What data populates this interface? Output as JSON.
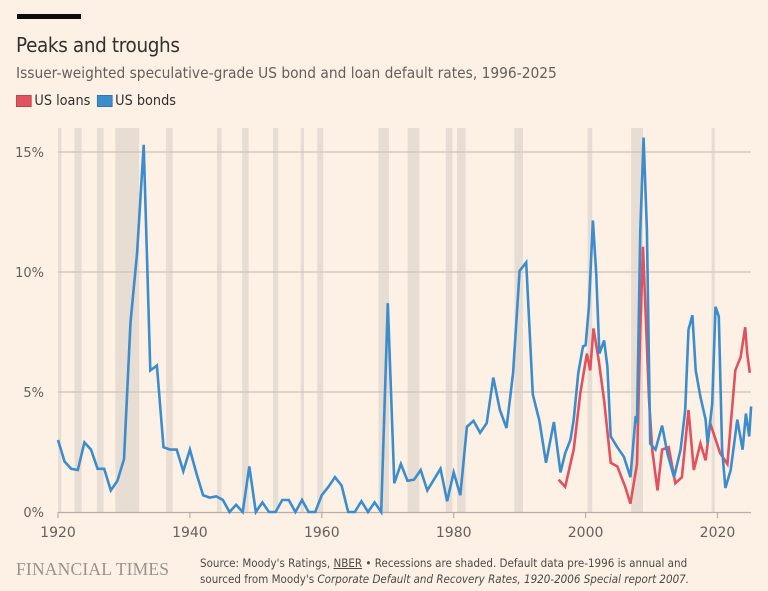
{
  "header": {
    "title": "Peaks and troughs",
    "subtitle": "Issuer-weighted speculative-grade US bond and loan default rates, 1996-2025"
  },
  "legend": [
    {
      "label": "US loans",
      "color": "#e0525e"
    },
    {
      "label": "US bonds",
      "color": "#3d8ccc"
    }
  ],
  "footer": {
    "logo": "FINANCIAL TIMES",
    "source_prefix": "Source: Moody's Ratings, ",
    "source_link": "NBER",
    "source_mid": " • Recessions are shaded. Default data pre-1996 is annual and",
    "source_line2_prefix": "sourced from Moody's ",
    "source_line2_italic": "Corporate Default and Recovery Rates, 1920-2006 Special report 2007."
  },
  "chart_data": {
    "type": "line",
    "title": "Peaks and troughs",
    "subtitle": "Issuer-weighted speculative-grade US bond and loan default rates, 1996-2025",
    "xlabel": "",
    "ylabel": "",
    "xlim": [
      1920,
      2025.2
    ],
    "ylim": [
      0,
      16
    ],
    "x_ticks": [
      1920,
      1940,
      1960,
      1980,
      2000,
      2020
    ],
    "x_tick_labels": [
      "1920",
      "1940",
      "1960",
      "1980",
      "2000",
      "2020"
    ],
    "y_ticks": [
      0,
      5,
      10,
      15
    ],
    "y_tick_labels": [
      "0%",
      "5%",
      "10%",
      "15%"
    ],
    "grid": "horizontal",
    "legend_position": "top-left",
    "recessions": [
      [
        1920.0,
        1920.5
      ],
      [
        1922.5,
        1923.6
      ],
      [
        1925.9,
        1926.9
      ],
      [
        1928.7,
        1932.3
      ],
      [
        1936.4,
        1937.4
      ],
      [
        1944.1,
        1944.8
      ],
      [
        1947.9,
        1948.9
      ],
      [
        1952.6,
        1953.4
      ],
      [
        1956.8,
        1957.3
      ],
      [
        1959.3,
        1960.2
      ],
      [
        1968.6,
        1970.2
      ],
      [
        1973.0,
        1974.8
      ],
      [
        1978.8,
        1979.8
      ],
      [
        1980.5,
        1981.8
      ],
      [
        1989.2,
        1990.5
      ],
      [
        2000.3,
        2001.0
      ],
      [
        2006.9,
        2008.7
      ],
      [
        2019.1,
        2019.6
      ]
    ],
    "series": [
      {
        "name": "US bonds",
        "color": "#3d8ccc",
        "x": [
          1920,
          1921,
          1922,
          1923,
          1924,
          1925,
          1926,
          1927,
          1928,
          1929,
          1930,
          1931,
          1932,
          1933,
          1934,
          1935,
          1936,
          1937,
          1938,
          1939,
          1940,
          1941,
          1942,
          1943,
          1944,
          1945,
          1946,
          1947,
          1948,
          1949,
          1950,
          1951,
          1952,
          1953,
          1954,
          1955,
          1956,
          1957,
          1958,
          1959,
          1960,
          1961,
          1962,
          1963,
          1964,
          1965,
          1966,
          1967,
          1968,
          1969,
          1970,
          1971,
          1972,
          1973,
          1974,
          1975,
          1976,
          1977,
          1978,
          1979,
          1980,
          1981,
          1982,
          1983,
          1984,
          1985,
          1986,
          1987,
          1988,
          1989,
          1990,
          1991,
          1992,
          1993,
          1994,
          1995.2,
          1996.2,
          1996.9,
          1997.7,
          1998.2,
          1998.9,
          1999.6,
          2000.0,
          2000.5,
          2001.1,
          2001.6,
          2002.1,
          2002.8,
          2003.3,
          2003.8,
          2004.8,
          2005.8,
          2006.8,
          2007.6,
          2007.8,
          2008.3,
          2008.8,
          2009.3,
          2009.8,
          2010.6,
          2011.6,
          2012.4,
          2013.4,
          2014.4,
          2015.1,
          2015.6,
          2016.2,
          2016.7,
          2017.4,
          2018.2,
          2018.5,
          2019.2,
          2019.7,
          2020.2,
          2020.7,
          2021.2,
          2022.0,
          2023.0,
          2023.8,
          2024.3,
          2024.8,
          2025.1
        ],
        "values": [
          3.0,
          2.1,
          1.8,
          1.75,
          2.9,
          2.6,
          1.8,
          1.8,
          0.9,
          1.3,
          2.2,
          7.9,
          10.8,
          15.3,
          5.9,
          6.1,
          2.7,
          2.6,
          2.6,
          1.7,
          2.6,
          1.6,
          0.7,
          0.6,
          0.65,
          0.5,
          0.0,
          0.3,
          0.0,
          1.9,
          0.0,
          0.4,
          0.0,
          0.0,
          0.5,
          0.5,
          0.0,
          0.5,
          0.0,
          0.0,
          0.7,
          1.05,
          1.45,
          1.1,
          0.0,
          0.0,
          0.45,
          0.0,
          0.4,
          0.0,
          8.7,
          1.2,
          2.0,
          1.3,
          1.35,
          1.75,
          0.9,
          1.35,
          1.8,
          0.45,
          1.65,
          0.7,
          3.55,
          3.8,
          3.3,
          3.7,
          5.6,
          4.25,
          3.5,
          5.8,
          10.05,
          10.4,
          4.9,
          3.8,
          2.05,
          3.75,
          1.65,
          2.45,
          3.0,
          3.85,
          5.8,
          6.9,
          6.95,
          8.55,
          12.15,
          9.95,
          6.6,
          7.15,
          6.05,
          3.15,
          2.7,
          2.3,
          1.45,
          4.0,
          3.7,
          11.75,
          15.6,
          11.75,
          2.85,
          2.6,
          3.6,
          2.45,
          1.45,
          2.6,
          4.25,
          7.6,
          8.2,
          5.9,
          4.8,
          3.85,
          2.85,
          4.5,
          8.55,
          8.15,
          2.6,
          1.0,
          1.75,
          3.85,
          2.6,
          4.1,
          3.15,
          4.4
        ]
      },
      {
        "name": "US loans",
        "color": "#e0525e",
        "x": [
          1995.9,
          1996.9,
          1998.2,
          1999.2,
          2000.2,
          2000.7,
          2001.2,
          2002.0,
          2002.8,
          2003.8,
          2004.8,
          2006.0,
          2006.8,
          2007.8,
          2008.3,
          2008.7,
          2009.6,
          2010.1,
          2010.9,
          2011.6,
          2012.6,
          2013.6,
          2014.6,
          2015.6,
          2016.4,
          2017.4,
          2018.2,
          2018.9,
          2020.4,
          2021.5,
          2022.7,
          2023.5,
          2024.2,
          2024.5,
          2024.9
        ],
        "values": [
          1.35,
          1.05,
          2.6,
          4.95,
          6.6,
          5.9,
          7.65,
          6.3,
          4.65,
          2.05,
          1.9,
          1.05,
          0.35,
          2.0,
          7.6,
          11.05,
          4.8,
          2.6,
          0.9,
          2.6,
          2.7,
          1.2,
          1.45,
          4.25,
          1.75,
          2.85,
          2.15,
          3.7,
          2.45,
          2.0,
          5.9,
          6.45,
          7.7,
          6.6,
          5.8
        ]
      }
    ]
  }
}
